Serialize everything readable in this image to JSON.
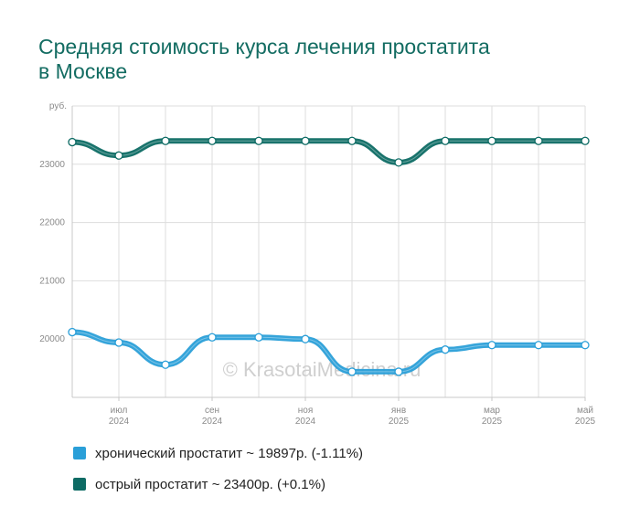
{
  "chart_data": {
    "type": "line",
    "title_lines": [
      "Средняя стоимость курса лечения простатита",
      "в Москве"
    ],
    "ylabel": "руб.",
    "ylim": [
      19000,
      24000
    ],
    "y_ticks": [
      {
        "value": 20000,
        "label": "20000"
      },
      {
        "value": 21000,
        "label": "21000"
      },
      {
        "value": 22000,
        "label": "22000"
      },
      {
        "value": 23000,
        "label": "23000"
      }
    ],
    "x_months": [
      "2024-06",
      "2024-07",
      "2024-08",
      "2024-09",
      "2024-10",
      "2024-11",
      "2024-12",
      "2025-01",
      "2025-02",
      "2025-03",
      "2025-04",
      "2025-05"
    ],
    "x_tick_labels": [
      {
        "index": 1,
        "month": "июл",
        "year": "2024"
      },
      {
        "index": 3,
        "month": "сен",
        "year": "2024"
      },
      {
        "index": 5,
        "month": "ноя",
        "year": "2024"
      },
      {
        "index": 7,
        "month": "янв",
        "year": "2025"
      },
      {
        "index": 9,
        "month": "мар",
        "year": "2025"
      },
      {
        "index": 11,
        "month": "май",
        "year": "2025"
      }
    ],
    "series": [
      {
        "name": "хронический простатит",
        "color": "#2a9fd8",
        "values": [
          20120,
          19940,
          19560,
          20030,
          20030,
          20000,
          19440,
          19440,
          19820,
          19897,
          19897,
          19897
        ],
        "legend": "хронический простатит ~ 19897р. (-1.11%)"
      },
      {
        "name": "острый простатит",
        "color": "#0d6b64",
        "values": [
          23380,
          23150,
          23400,
          23400,
          23400,
          23400,
          23400,
          23030,
          23400,
          23400,
          23400,
          23400
        ],
        "legend": "острый простатит ~ 23400р. (+0.1%)"
      }
    ],
    "grid": true,
    "legend_position": "bottom-left",
    "watermark": "© KrasotaiMedicina.ru"
  }
}
